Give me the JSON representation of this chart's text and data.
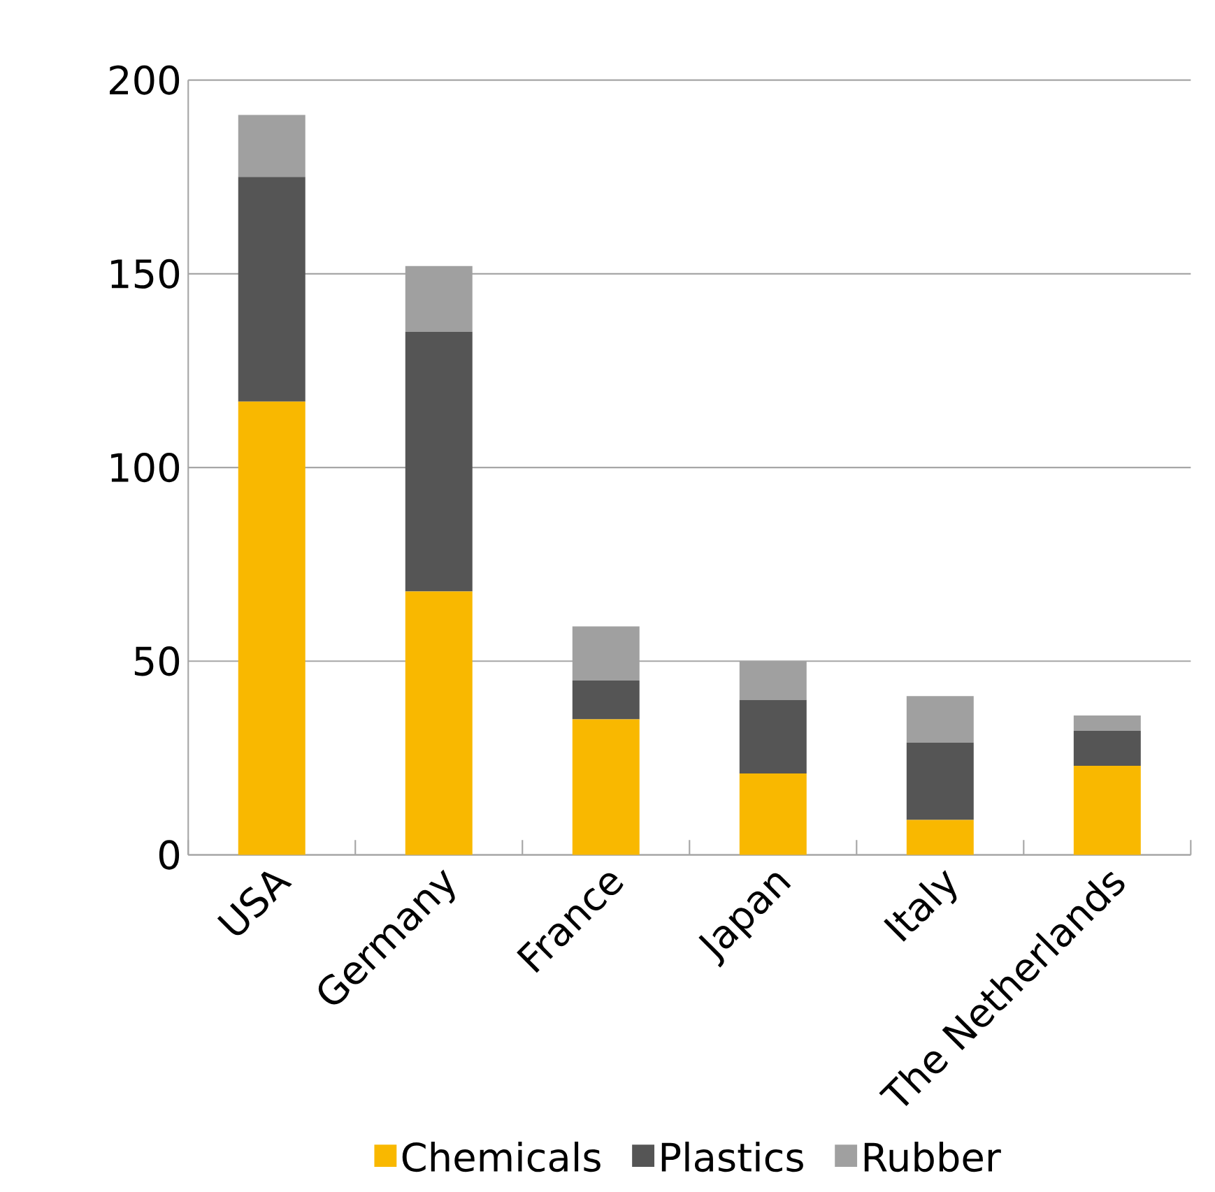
{
  "chart_data": {
    "type": "bar",
    "stacked": true,
    "categories": [
      "USA",
      "Germany",
      "France",
      "Japan",
      "Italy",
      "The Netherlands"
    ],
    "series": [
      {
        "name": "Chemicals",
        "color": "#f9b800",
        "values": [
          117,
          68,
          35,
          21,
          9,
          23
        ]
      },
      {
        "name": "Plastics",
        "color": "#555555",
        "values": [
          58,
          67,
          10,
          19,
          20,
          9
        ]
      },
      {
        "name": "Rubber",
        "color": "#a0a0a0",
        "values": [
          16,
          17,
          14,
          10,
          12,
          4
        ]
      }
    ],
    "ylim": [
      0,
      200
    ],
    "yticks": [
      0,
      50,
      100,
      150,
      200
    ],
    "grid": "y",
    "legend": "bottom"
  }
}
